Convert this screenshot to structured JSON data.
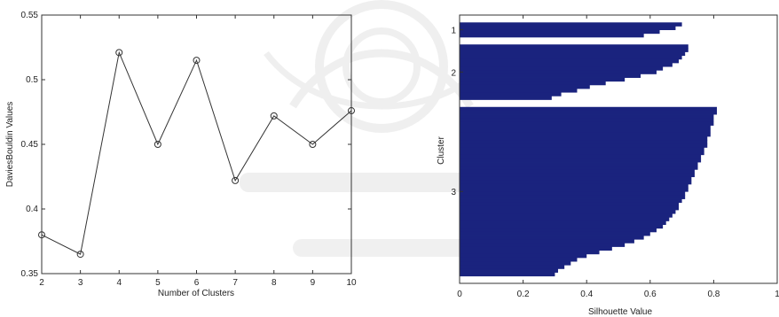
{
  "chart_data": [
    {
      "type": "line",
      "xlabel": "Number of Clusters",
      "ylabel": "DaviesBouldin Values",
      "xlim": [
        2,
        10
      ],
      "ylim": [
        0.35,
        0.55
      ],
      "x_ticks": [
        "2",
        "3",
        "4",
        "5",
        "6",
        "7",
        "8",
        "9",
        "10"
      ],
      "y_ticks": [
        "0.35",
        "0.4",
        "0.45",
        "0.5",
        "0.55"
      ],
      "x": [
        2,
        3,
        4,
        5,
        6,
        7,
        8,
        9,
        10
      ],
      "series": [
        {
          "values": [
            0.38,
            0.365,
            0.521,
            0.45,
            0.515,
            0.422,
            0.472,
            0.45,
            0.476
          ],
          "color": "#333333"
        }
      ],
      "grid": false,
      "marker": "circle"
    },
    {
      "type": "bar",
      "orientation": "horizontal",
      "xlabel": "Silhouette Value",
      "ylabel": "Cluster",
      "xlim": [
        0,
        1.0
      ],
      "x_ticks": [
        "0",
        "0.2",
        "0.4",
        "0.6",
        "0.8",
        "1"
      ],
      "cluster_labels": [
        "1",
        "2",
        "3"
      ],
      "color": "#1a237e",
      "clusters": [
        {
          "label": "1",
          "values": [
            0.7,
            0.68,
            0.63,
            0.58
          ]
        },
        {
          "label": "2",
          "values": [
            0.72,
            0.72,
            0.71,
            0.7,
            0.69,
            0.67,
            0.64,
            0.62,
            0.57,
            0.52,
            0.46,
            0.41,
            0.37,
            0.32,
            0.29
          ]
        },
        {
          "label": "3",
          "values": [
            0.81,
            0.81,
            0.8,
            0.8,
            0.8,
            0.79,
            0.79,
            0.79,
            0.78,
            0.78,
            0.78,
            0.77,
            0.77,
            0.76,
            0.76,
            0.75,
            0.75,
            0.74,
            0.74,
            0.73,
            0.73,
            0.72,
            0.72,
            0.71,
            0.71,
            0.7,
            0.69,
            0.69,
            0.68,
            0.67,
            0.66,
            0.65,
            0.64,
            0.62,
            0.6,
            0.58,
            0.55,
            0.52,
            0.48,
            0.44,
            0.4,
            0.37,
            0.35,
            0.33,
            0.31,
            0.3
          ]
        }
      ]
    }
  ]
}
